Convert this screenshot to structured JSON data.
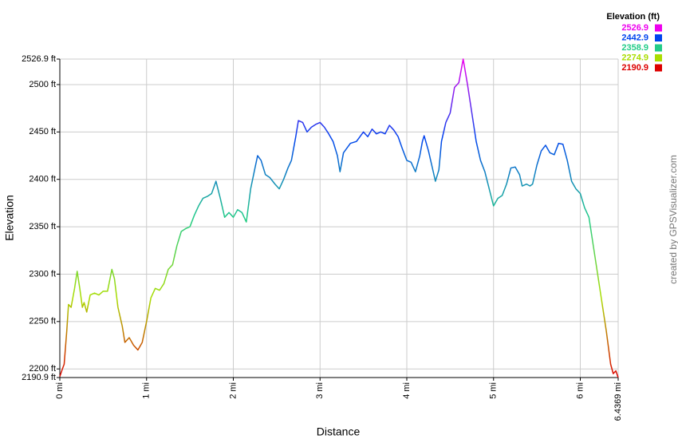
{
  "chart_data": {
    "type": "line",
    "xlabel": "Distance",
    "ylabel": "Elevation",
    "credit": "created by GPSVisualizer.com",
    "legend": {
      "title": "Elevation (ft)",
      "items": [
        {
          "value": 2526.9,
          "color": "#ee00ee"
        },
        {
          "value": 2442.9,
          "color": "#0044ee"
        },
        {
          "value": 2358.9,
          "color": "#22cc88"
        },
        {
          "value": 2274.9,
          "color": "#aadd00"
        },
        {
          "value": 2190.9,
          "color": "#dd0000"
        }
      ]
    },
    "grid": true,
    "xlim": [
      0,
      6.4369
    ],
    "ylim": [
      2190.9,
      2526.9
    ],
    "xticks": [
      {
        "value": 0,
        "label": "0 mi"
      },
      {
        "value": 1,
        "label": "1 mi"
      },
      {
        "value": 2,
        "label": "2 mi"
      },
      {
        "value": 3,
        "label": "3 mi"
      },
      {
        "value": 4,
        "label": "4 mi"
      },
      {
        "value": 5,
        "label": "5 mi"
      },
      {
        "value": 6,
        "label": "6 mi"
      },
      {
        "value": 6.4369,
        "label": "6.4369 mi"
      }
    ],
    "yticks": [
      {
        "value": 2190.9,
        "label": "2190.9 ft"
      },
      {
        "value": 2200,
        "label": "2200 ft"
      },
      {
        "value": 2250,
        "label": "2250 ft"
      },
      {
        "value": 2300,
        "label": "2300 ft"
      },
      {
        "value": 2350,
        "label": "2350 ft"
      },
      {
        "value": 2400,
        "label": "2400 ft"
      },
      {
        "value": 2450,
        "label": "2450 ft"
      },
      {
        "value": 2500,
        "label": "2500 ft"
      },
      {
        "value": 2526.9,
        "label": "2526.9 ft"
      }
    ],
    "x": [
      0,
      0.03,
      0.05,
      0.08,
      0.1,
      0.13,
      0.17,
      0.2,
      0.23,
      0.26,
      0.28,
      0.31,
      0.35,
      0.4,
      0.45,
      0.5,
      0.55,
      0.6,
      0.63,
      0.67,
      0.72,
      0.75,
      0.8,
      0.85,
      0.9,
      0.95,
      1.0,
      1.05,
      1.1,
      1.15,
      1.2,
      1.25,
      1.3,
      1.35,
      1.4,
      1.45,
      1.5,
      1.55,
      1.6,
      1.65,
      1.7,
      1.75,
      1.8,
      1.85,
      1.9,
      1.95,
      2.0,
      2.05,
      2.1,
      2.15,
      2.2,
      2.25,
      2.28,
      2.32,
      2.37,
      2.42,
      2.48,
      2.53,
      2.58,
      2.63,
      2.67,
      2.72,
      2.75,
      2.8,
      2.85,
      2.9,
      2.95,
      3.0,
      3.05,
      3.1,
      3.15,
      3.2,
      3.23,
      3.27,
      3.35,
      3.42,
      3.5,
      3.55,
      3.6,
      3.65,
      3.7,
      3.75,
      3.8,
      3.85,
      3.9,
      3.95,
      4.0,
      4.05,
      4.1,
      4.15,
      4.18,
      4.2,
      4.25,
      4.3,
      4.33,
      4.37,
      4.4,
      4.45,
      4.5,
      4.55,
      4.6,
      4.65,
      4.7,
      4.75,
      4.8,
      4.85,
      4.9,
      4.95,
      5.0,
      5.05,
      5.1,
      5.15,
      5.2,
      5.25,
      5.3,
      5.33,
      5.38,
      5.42,
      5.45,
      5.5,
      5.55,
      5.6,
      5.65,
      5.7,
      5.75,
      5.8,
      5.85,
      5.9,
      5.95,
      6.0,
      6.05,
      6.1,
      6.15,
      6.2,
      6.25,
      6.3,
      6.35,
      6.38,
      6.41,
      6.4369
    ],
    "values": [
      2192,
      2200,
      2205,
      2240,
      2268,
      2265,
      2285,
      2303,
      2285,
      2265,
      2270,
      2260,
      2278,
      2280,
      2278,
      2282,
      2282,
      2305,
      2295,
      2265,
      2245,
      2228,
      2233,
      2225,
      2220,
      2228,
      2250,
      2275,
      2285,
      2283,
      2290,
      2305,
      2310,
      2330,
      2345,
      2348,
      2350,
      2362,
      2372,
      2380,
      2382,
      2385,
      2398,
      2380,
      2360,
      2365,
      2360,
      2368,
      2365,
      2355,
      2390,
      2412,
      2425,
      2420,
      2405,
      2402,
      2395,
      2390,
      2400,
      2412,
      2420,
      2445,
      2462,
      2460,
      2450,
      2455,
      2458,
      2460,
      2455,
      2448,
      2440,
      2425,
      2408,
      2428,
      2438,
      2440,
      2450,
      2445,
      2453,
      2448,
      2450,
      2448,
      2457,
      2452,
      2445,
      2432,
      2420,
      2418,
      2408,
      2425,
      2440,
      2446,
      2430,
      2410,
      2398,
      2410,
      2440,
      2460,
      2470,
      2497,
      2502,
      2526.9,
      2500,
      2470,
      2440,
      2420,
      2408,
      2390,
      2372,
      2380,
      2383,
      2395,
      2412,
      2413,
      2405,
      2393,
      2395,
      2393,
      2395,
      2415,
      2430,
      2436,
      2428,
      2426,
      2438,
      2437,
      2420,
      2398,
      2390,
      2385,
      2370,
      2360,
      2330,
      2300,
      2270,
      2240,
      2205,
      2195,
      2198,
      2191
    ]
  }
}
